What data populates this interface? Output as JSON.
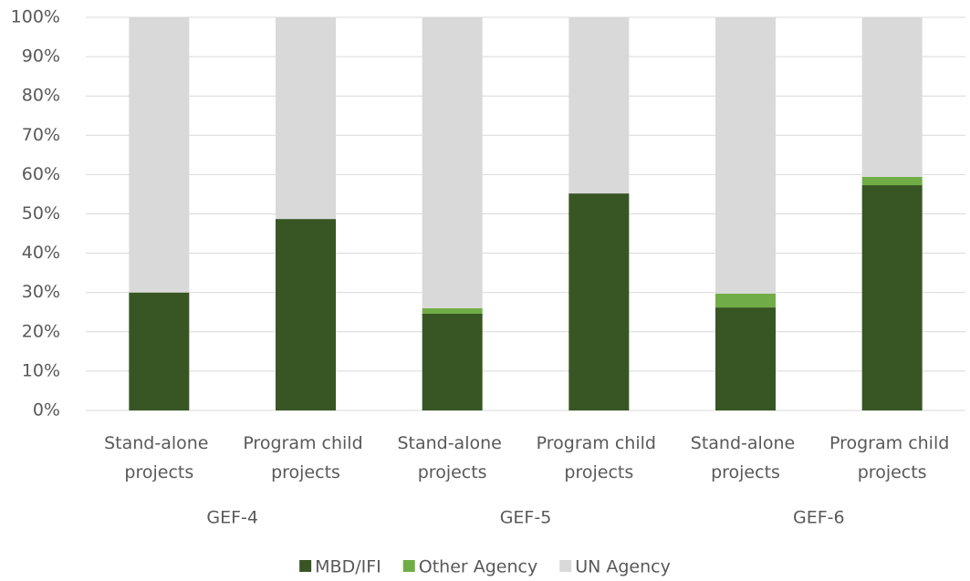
{
  "chart_data": {
    "type": "stacked_bar",
    "categories": [
      "Stand-alone projects",
      "Program child projects",
      "Stand-alone projects",
      "Program child projects",
      "Stand-alone projects",
      "Program child projects"
    ],
    "groups": [
      "GEF-4",
      "GEF-5",
      "GEF-6"
    ],
    "series": [
      {
        "name": "MBD/IFI",
        "color": "#375623",
        "values": [
          30,
          48.7,
          24.6,
          55.2,
          26.2,
          57.3
        ]
      },
      {
        "name": "Other Agency",
        "color": "#70ad47",
        "values": [
          0,
          0,
          1.4,
          0,
          3.5,
          2.1
        ]
      },
      {
        "name": "UN Agency",
        "color": "#d9d9d9",
        "values": [
          70,
          51.3,
          74,
          44.8,
          70.3,
          40.6
        ]
      }
    ],
    "ylim": [
      0,
      100
    ],
    "yticks": [
      {
        "value": 0,
        "label": "0%"
      },
      {
        "value": 10,
        "label": "10%"
      },
      {
        "value": 20,
        "label": "20%"
      },
      {
        "value": 30,
        "label": "30%"
      },
      {
        "value": 40,
        "label": "40%"
      },
      {
        "value": 50,
        "label": "50%"
      },
      {
        "value": 60,
        "label": "60%"
      },
      {
        "value": 70,
        "label": "70%"
      },
      {
        "value": 80,
        "label": "80%"
      },
      {
        "value": 90,
        "label": "90%"
      },
      {
        "value": 100,
        "label": "100%"
      }
    ],
    "grid": true,
    "legend": "bottom"
  }
}
